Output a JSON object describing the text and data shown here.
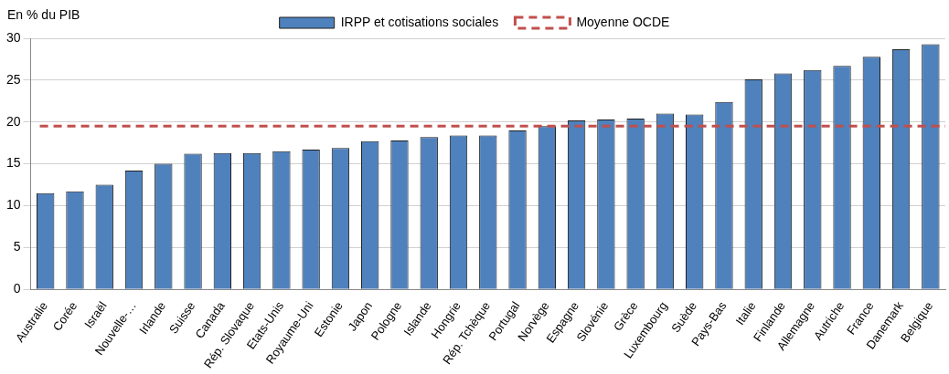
{
  "chart_data": {
    "type": "bar",
    "ylabel": "En % du PIB",
    "categories": [
      "Australie",
      "Corée",
      "Israël",
      "Nouvelle-…",
      "Irlande",
      "Suisse",
      "Canada",
      "Rép. Slovaque",
      "Etats-Unis",
      "Royaume-Uni",
      "Estonie",
      "Japon",
      "Pologne",
      "Islande",
      "Hongrie",
      "Rép. Tchèque",
      "Portugal",
      "Norvège",
      "Espagne",
      "Slovénie",
      "Grèce",
      "Luxembourg",
      "Suède",
      "Pays-Bas",
      "Italie",
      "Finlande",
      "Allemagne",
      "Autriche",
      "France",
      "Danemark",
      "Belgique"
    ],
    "series": [
      {
        "name": "IRPP et cotisations sociales",
        "color": "#4f81bd",
        "values": [
          11.5,
          11.7,
          12.5,
          14.2,
          15,
          16.2,
          16.3,
          16.3,
          16.5,
          16.7,
          16.9,
          17.7,
          17.8,
          18.2,
          18.4,
          18.4,
          19,
          19.5,
          20.2,
          20.3,
          20.4,
          21,
          20.9,
          22.4,
          25.1,
          25.8,
          26.2,
          26.7,
          27.8,
          28.7,
          29.3
        ]
      }
    ],
    "ref_lines": [
      {
        "axis": "y",
        "value": 19.5,
        "label": "Moyenne OCDE",
        "color": "#c0504d",
        "line_style": "dashed"
      }
    ],
    "ylim": [
      0,
      30
    ],
    "yticks": [
      0,
      5,
      10,
      15,
      20,
      25,
      30
    ],
    "grid": "y",
    "legend": "top"
  }
}
